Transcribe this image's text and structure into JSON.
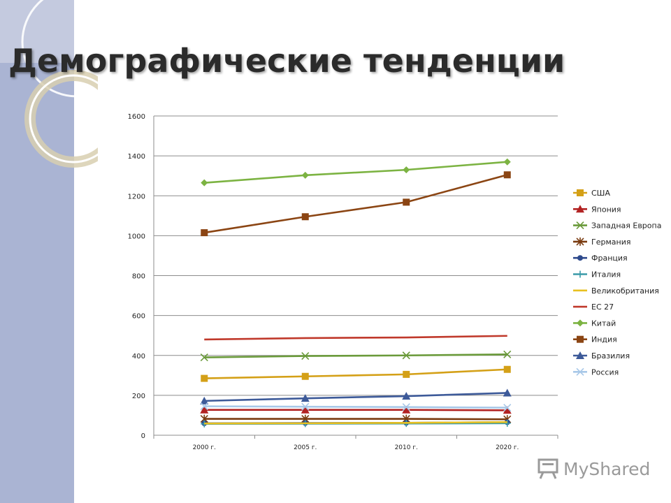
{
  "slide": {
    "title": "Демографические тенденции"
  },
  "colors": {
    "band": "#aab4d3",
    "grid": "#8c8c8c"
  },
  "watermark": {
    "text": "MyShared",
    "icon": "projector-icon"
  },
  "chart_data": {
    "type": "line",
    "title": "",
    "xlabel": "",
    "ylabel": "",
    "categories": [
      "2000 г.",
      "2005 г.",
      "2010 г.",
      "2020 г."
    ],
    "ylim": [
      0,
      1600
    ],
    "yticks": [
      0,
      200,
      400,
      600,
      800,
      1000,
      1200,
      1400,
      1600
    ],
    "grid": true,
    "legend": "right",
    "series": [
      {
        "name": "США",
        "color": "#d4a017",
        "marker": "square",
        "values": [
          285,
          295,
          305,
          330
        ]
      },
      {
        "name": "Япония",
        "color": "#b22222",
        "marker": "triangle",
        "values": [
          127,
          127,
          127,
          125
        ]
      },
      {
        "name": "Западная Европа",
        "color": "#6a9a3a",
        "marker": "x",
        "values": [
          390,
          397,
          400,
          405
        ]
      },
      {
        "name": "Германия",
        "color": "#7a3b10",
        "marker": "star",
        "values": [
          82,
          82,
          82,
          80
        ]
      },
      {
        "name": "Франция",
        "color": "#2e4a8c",
        "marker": "circle",
        "values": [
          60,
          61,
          62,
          65
        ]
      },
      {
        "name": "Италия",
        "color": "#3a9aa8",
        "marker": "plus",
        "values": [
          57,
          58,
          59,
          60
        ]
      },
      {
        "name": "Великобритания",
        "color": "#e8c020",
        "marker": "none",
        "values": [
          59,
          60,
          62,
          66
        ]
      },
      {
        "name": "ЕС 27",
        "color": "#c0392b",
        "marker": "none",
        "values": [
          480,
          487,
          490,
          498
        ]
      },
      {
        "name": "Китай",
        "color": "#7cb342",
        "marker": "diamond",
        "values": [
          1265,
          1303,
          1330,
          1370
        ]
      },
      {
        "name": "Индия",
        "color": "#8b4513",
        "marker": "square",
        "values": [
          1015,
          1095,
          1168,
          1305
        ]
      },
      {
        "name": "Бразилия",
        "color": "#3d5a99",
        "marker": "triangle",
        "values": [
          172,
          185,
          196,
          212
        ]
      },
      {
        "name": "Россия",
        "color": "#a8c8e8",
        "marker": "x",
        "values": [
          145,
          143,
          141,
          138
        ]
      }
    ]
  }
}
